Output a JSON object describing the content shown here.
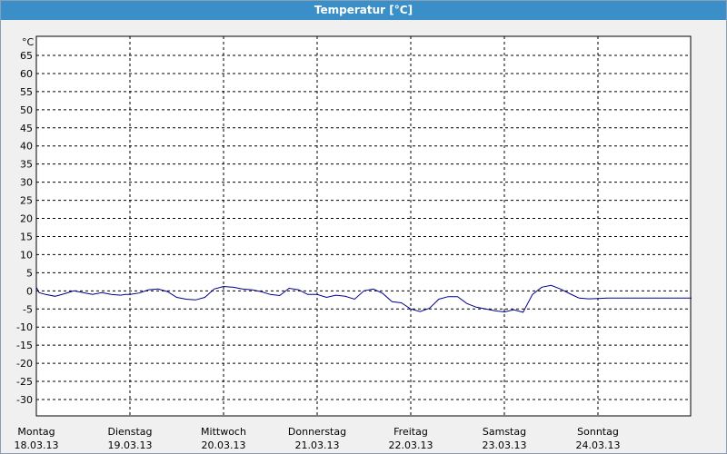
{
  "window": {
    "title": "Temperatur [°C]"
  },
  "chart_data": {
    "type": "line",
    "title": "Temperatur [°C]",
    "ylabel": "°C",
    "ylim": [
      -30,
      65
    ],
    "ytick_step": 5,
    "yticks": [
      "65",
      "60",
      "55",
      "50",
      "45",
      "40",
      "35",
      "30",
      "25",
      "20",
      "15",
      "10",
      "5",
      "0",
      "-5",
      "-10",
      "-15",
      "-20",
      "-25",
      "-30"
    ],
    "xlim": [
      0,
      7
    ],
    "x_ticks": [
      {
        "day": "Montag",
        "date": "18.03.13"
      },
      {
        "day": "Dienstag",
        "date": "19.03.13"
      },
      {
        "day": "Mittwoch",
        "date": "20.03.13"
      },
      {
        "day": "Donnerstag",
        "date": "21.03.13"
      },
      {
        "day": "Freitag",
        "date": "22.03.13"
      },
      {
        "day": "Samstag",
        "date": "23.03.13"
      },
      {
        "day": "Sonntag",
        "date": "24.03.13"
      }
    ],
    "grid": true,
    "colors": {
      "line": "#00008b",
      "grid": "#000000",
      "plot_bg": "#ffffff"
    },
    "series": [
      {
        "x": [
          0.0,
          0.03,
          0.1,
          0.2,
          0.3,
          0.4,
          0.5,
          0.6,
          0.7,
          0.8,
          0.9,
          0.95,
          1.0,
          1.1,
          1.2,
          1.3,
          1.4,
          1.5,
          1.6,
          1.7,
          1.8,
          1.9,
          2.0,
          2.1,
          2.2,
          2.3,
          2.4,
          2.5,
          2.6,
          2.7,
          2.8,
          2.9,
          3.0,
          3.1,
          3.2,
          3.3,
          3.4,
          3.5,
          3.6,
          3.7,
          3.8,
          3.9,
          4.0,
          4.1,
          4.2,
          4.3,
          4.4,
          4.5,
          4.6,
          4.7,
          4.8,
          4.9,
          5.0,
          5.1,
          5.2,
          5.3,
          5.4,
          5.5,
          5.6,
          5.7,
          5.8,
          5.9,
          6.0,
          6.1,
          6.2,
          6.3,
          6.4,
          6.5,
          6.6,
          6.7,
          6.8,
          6.9,
          7.0
        ],
        "values": [
          1.0,
          -0.5,
          -1.0,
          -1.5,
          -0.8,
          0.0,
          -0.5,
          -1.0,
          -0.5,
          -1.0,
          -1.2,
          -1.0,
          -1.0,
          -0.6,
          0.3,
          0.5,
          -0.2,
          -1.8,
          -2.3,
          -2.5,
          -1.8,
          0.5,
          1.2,
          1.0,
          0.5,
          0.3,
          -0.2,
          -1.0,
          -1.3,
          0.7,
          0.3,
          -1.0,
          -1.0,
          -1.8,
          -1.2,
          -1.5,
          -2.3,
          0.0,
          0.5,
          -0.7,
          -3.0,
          -3.3,
          -5.0,
          -5.7,
          -4.8,
          -2.3,
          -1.6,
          -1.6,
          -3.5,
          -4.5,
          -5.0,
          -5.5,
          -5.8,
          -5.2,
          -5.9,
          -1.0,
          1.0,
          1.5,
          0.5,
          -0.8,
          -2.0,
          -2.2,
          -2.1,
          -2.0,
          -2.0,
          -2.0,
          -2.0,
          -2.0,
          -2.0,
          -2.0,
          -2.0,
          -2.0,
          -2.0
        ]
      }
    ]
  }
}
